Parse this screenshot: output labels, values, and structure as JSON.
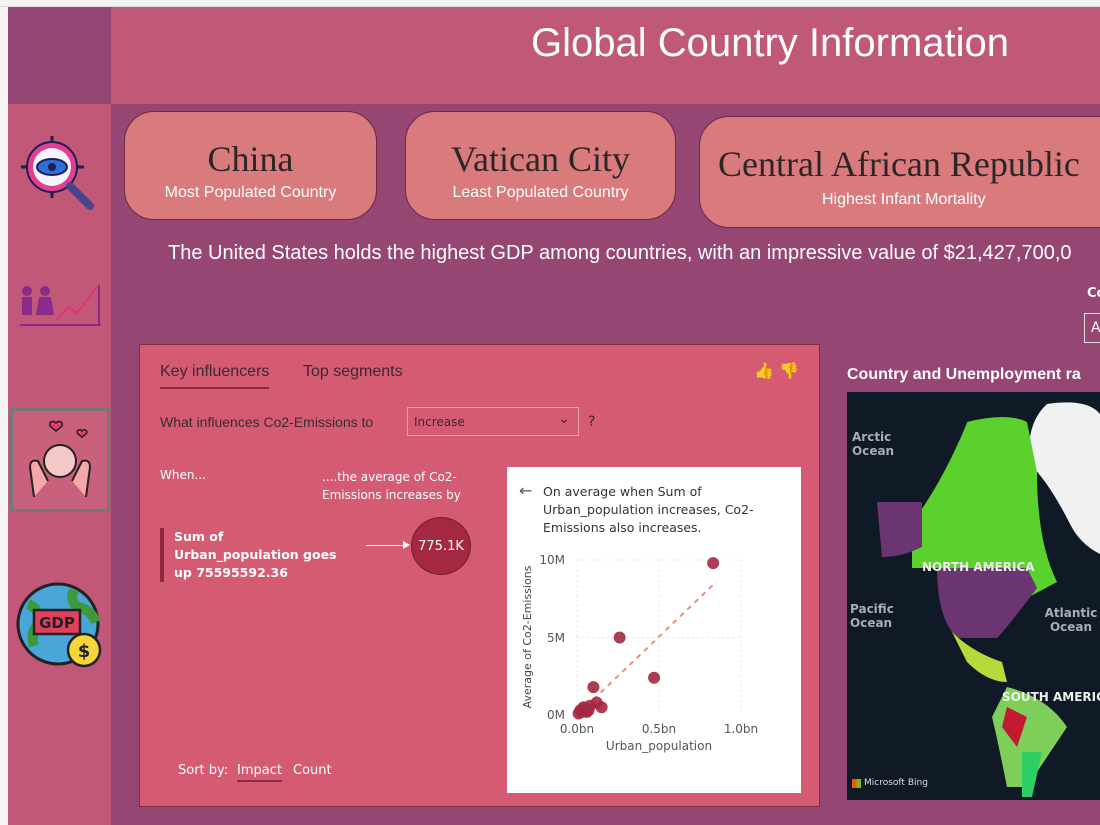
{
  "header": {
    "title": "Global Country Information"
  },
  "sidebar": {
    "items": [
      {
        "icon": "eye-search-icon",
        "selected": false
      },
      {
        "icon": "population-growth-icon",
        "selected": false
      },
      {
        "icon": "hands-heart-icon",
        "selected": true
      },
      {
        "icon": "gdp-globe-icon",
        "selected": false,
        "label": "GDP"
      }
    ]
  },
  "cards": [
    {
      "value": "China",
      "label": "Most Populated Country"
    },
    {
      "value": "Vatican City",
      "label": "Least Populated Country"
    },
    {
      "value": "Central African Republic",
      "label": "Highest Infant Mortality"
    }
  ],
  "gdp_text": "The United States holds the highest GDP among countries, with an impressive value of $21,427,700,0",
  "slicer": {
    "label": "Co",
    "value": "A"
  },
  "key_influencers": {
    "tabs": [
      "Key influencers",
      "Top segments"
    ],
    "question": "What influences Co2-Emissions to",
    "dropdown_value": "Increase",
    "question_mark": "?",
    "when": "When...",
    "avg_header": "....the average of Co2-Emissions increases by",
    "influencer": "Sum of Urban_population goes up 75595592.36",
    "impact": "775.1K",
    "sort_label": "Sort by:",
    "sort_options": [
      "Impact",
      "Count"
    ],
    "detail_text": "On average when Sum of Urban_population increases, Co2-Emissions also increases."
  },
  "chart_data": {
    "type": "scatter",
    "xlabel": "Urban_population",
    "ylabel": "Average of Co2-Emissions",
    "xticks": [
      "0.0bn",
      "0.5bn",
      "1.0bn"
    ],
    "yticks": [
      "0M",
      "5M",
      "10M"
    ],
    "xlim": [
      0,
      1.0
    ],
    "ylim": [
      0,
      10
    ],
    "x": [
      0.83,
      0.26,
      0.47,
      0.1,
      0.15,
      0.02,
      0.04,
      0.06,
      0.08,
      0.01,
      0.03,
      0.05,
      0.07,
      0.12
    ],
    "y": [
      9.8,
      5.0,
      2.4,
      1.8,
      0.5,
      0.3,
      0.5,
      0.2,
      0.6,
      0.1,
      0.2,
      0.4,
      0.3,
      0.8
    ],
    "trendline": {
      "x": [
        0.1,
        0.85
      ],
      "y": [
        1.0,
        8.6
      ],
      "style": "dashed"
    },
    "point_color": "#a42840",
    "trend_color": "#f08a7a"
  },
  "map": {
    "title": "Country and Unemployment ra",
    "labels": [
      "Arctic Ocean",
      "Pacific Ocean",
      "Atlantic Ocean",
      "NORTH AMERICA",
      "SOUTH AMERIC"
    ],
    "attribution": "Microsoft Bing"
  }
}
